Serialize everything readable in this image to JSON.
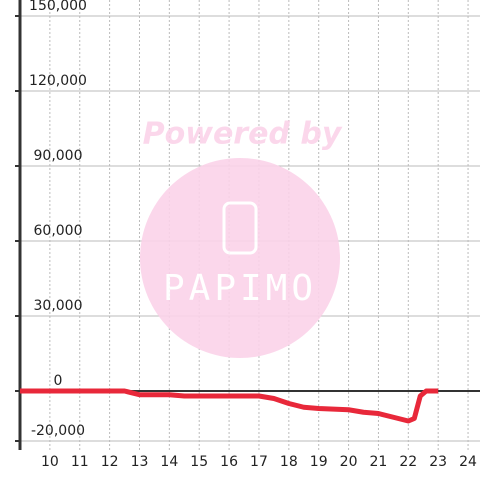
{
  "chart_data": {
    "type": "line",
    "watermark": {
      "text": "Powered by",
      "logo": "PAPIMO"
    },
    "x": [
      9,
      10,
      11,
      12,
      12.5,
      13,
      14,
      14.5,
      15,
      16,
      17,
      17.5,
      18,
      18.5,
      19,
      20,
      20.5,
      21,
      21.5,
      22,
      22.2,
      22.4,
      22.6,
      23
    ],
    "series": [
      {
        "color": "#e8283a",
        "values": [
          0,
          0,
          0,
          0,
          0,
          -1500,
          -1500,
          -2000,
          -2000,
          -2000,
          -2000,
          -3000,
          -5000,
          -6500,
          -7000,
          -7500,
          -8500,
          -9000,
          -10500,
          -12000,
          -11000,
          -2000,
          0,
          0
        ]
      }
    ],
    "xlim": [
      9,
      24.4
    ],
    "xticks": [
      10,
      11,
      12,
      13,
      14,
      15,
      16,
      17,
      18,
      19,
      20,
      21,
      22,
      23,
      24
    ],
    "ylim": [
      -20000,
      150000
    ],
    "yticks": [
      {
        "value": -20000,
        "label": "-20,000"
      },
      0,
      {
        "value": 30000,
        "label": "30,000"
      },
      {
        "value": 60000,
        "label": "60,000"
      },
      {
        "value": 90000,
        "label": "90,000"
      },
      {
        "value": 120000,
        "label": "120,000"
      },
      {
        "value": 150000,
        "label": "150,000"
      }
    ],
    "grid": true
  }
}
